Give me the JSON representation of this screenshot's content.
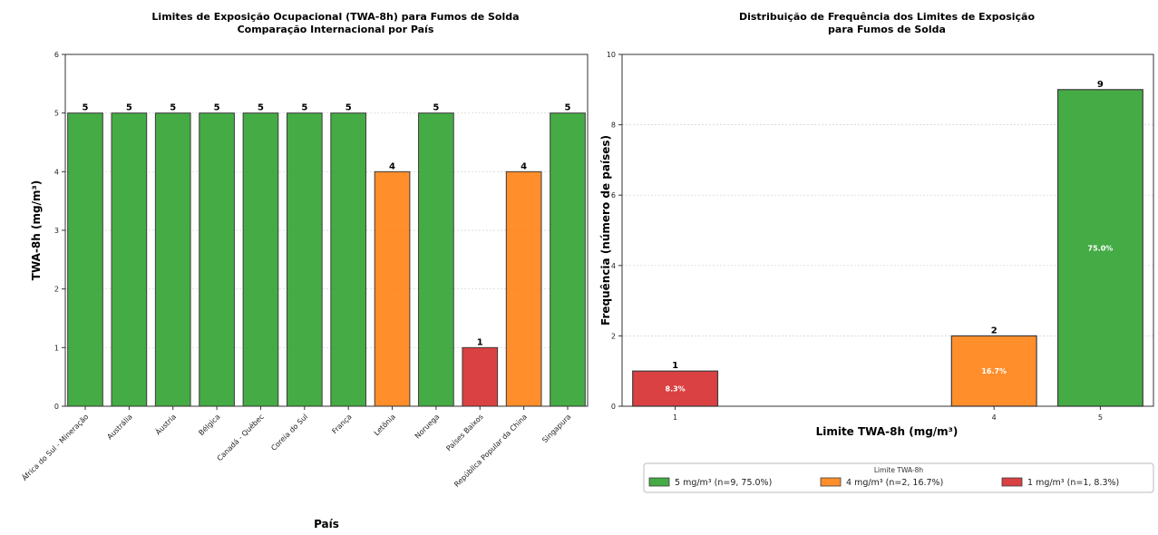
{
  "chart_data": [
    {
      "type": "bar",
      "title": "Limites de Exposição Ocupacional (TWA-8h) para Fumos de Solda",
      "subtitle": "Comparação Internacional por País",
      "xlabel": "País",
      "ylabel": "TWA-8h (mg/m³)",
      "ylim": [
        0,
        6
      ],
      "yticks": [
        0,
        1,
        2,
        3,
        4,
        5,
        6
      ],
      "grid": true,
      "categories": [
        "África do Sul - Mineração",
        "Austrália",
        "Áustria",
        "Bélgica",
        "Canadá - Québec",
        "Coreia do Sul",
        "França",
        "Letônia",
        "Noruega",
        "Países Baixos",
        "República Popular da China",
        "Singapura"
      ],
      "values": [
        5,
        5,
        5,
        5,
        5,
        5,
        5,
        4,
        5,
        1,
        4,
        5
      ],
      "value_labels": [
        "5",
        "5",
        "5",
        "5",
        "5",
        "5",
        "5",
        "4",
        "5",
        "1",
        "4",
        "5"
      ],
      "colors": [
        "#2ca02c",
        "#2ca02c",
        "#2ca02c",
        "#2ca02c",
        "#2ca02c",
        "#2ca02c",
        "#2ca02c",
        "#ff7f0e",
        "#2ca02c",
        "#d62728",
        "#ff7f0e",
        "#2ca02c"
      ]
    },
    {
      "type": "bar",
      "title": "Distribuição de Frequência dos Limites de Exposição",
      "subtitle": "para Fumos de Solda",
      "xlabel": "Limite TWA-8h (mg/m³)",
      "ylabel": "Frequência (número de países)",
      "xlim": [
        0.5,
        5.5
      ],
      "ylim": [
        0,
        10
      ],
      "yticks": [
        0,
        2,
        4,
        6,
        8,
        10
      ],
      "grid": true,
      "x": [
        1,
        4,
        5
      ],
      "x_tick_labels": [
        "1",
        "4",
        "5"
      ],
      "values": [
        1,
        2,
        9
      ],
      "value_labels": [
        "1",
        "2",
        "9"
      ],
      "percent_labels": [
        "8.3%",
        "16.7%",
        "75.0%"
      ],
      "colors": [
        "#d62728",
        "#ff7f0e",
        "#2ca02c"
      ],
      "legend": {
        "title": "Limite TWA-8h",
        "placement": "bottom",
        "entries": [
          {
            "label": "5 mg/m³ (n=9, 75.0%)",
            "color": "#2ca02c"
          },
          {
            "label": "4 mg/m³ (n=2, 16.7%)",
            "color": "#ff7f0e"
          },
          {
            "label": "1 mg/m³ (n=1, 8.3%)",
            "color": "#d62728"
          }
        ]
      }
    }
  ]
}
